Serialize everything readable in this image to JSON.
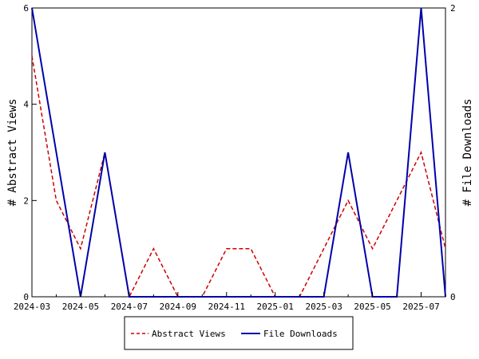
{
  "chart_data": {
    "type": "line",
    "x": [
      "2024-03",
      "2024-04",
      "2024-05",
      "2024-06",
      "2024-07",
      "2024-08",
      "2024-09",
      "2024-10",
      "2024-11",
      "2024-12",
      "2025-01",
      "2025-02",
      "2025-03",
      "2025-04",
      "2025-05",
      "2025-06",
      "2025-07",
      "2025-08"
    ],
    "x_tick_labels": [
      "2024-03",
      "2024-05",
      "2024-07",
      "2024-09",
      "2024-11",
      "2025-01",
      "2025-03",
      "2025-05",
      "2025-07"
    ],
    "ylabel_left": "# Abstract Views",
    "ylabel_right": "# File Downloads",
    "ylim_left": [
      0,
      6
    ],
    "ylim_right": [
      0,
      2
    ],
    "yticks_left": [
      0,
      2,
      4,
      6
    ],
    "yticks_right": [
      0,
      2
    ],
    "grid": false,
    "legend_position": "bottom-center",
    "series": [
      {
        "name": "Abstract Views",
        "axis": "left",
        "color": "#cc0000",
        "style": "dashed",
        "values": [
          5,
          2,
          1,
          3,
          0,
          1,
          0,
          0,
          1,
          1,
          0,
          0,
          1,
          2,
          1,
          2,
          3,
          1
        ]
      },
      {
        "name": "File Downloads",
        "axis": "right",
        "color": "#0000aa",
        "style": "solid",
        "values": [
          2,
          1,
          0,
          1,
          0,
          0,
          0,
          0,
          0,
          0,
          0,
          0,
          0,
          1,
          0,
          0,
          2,
          0
        ]
      }
    ]
  }
}
